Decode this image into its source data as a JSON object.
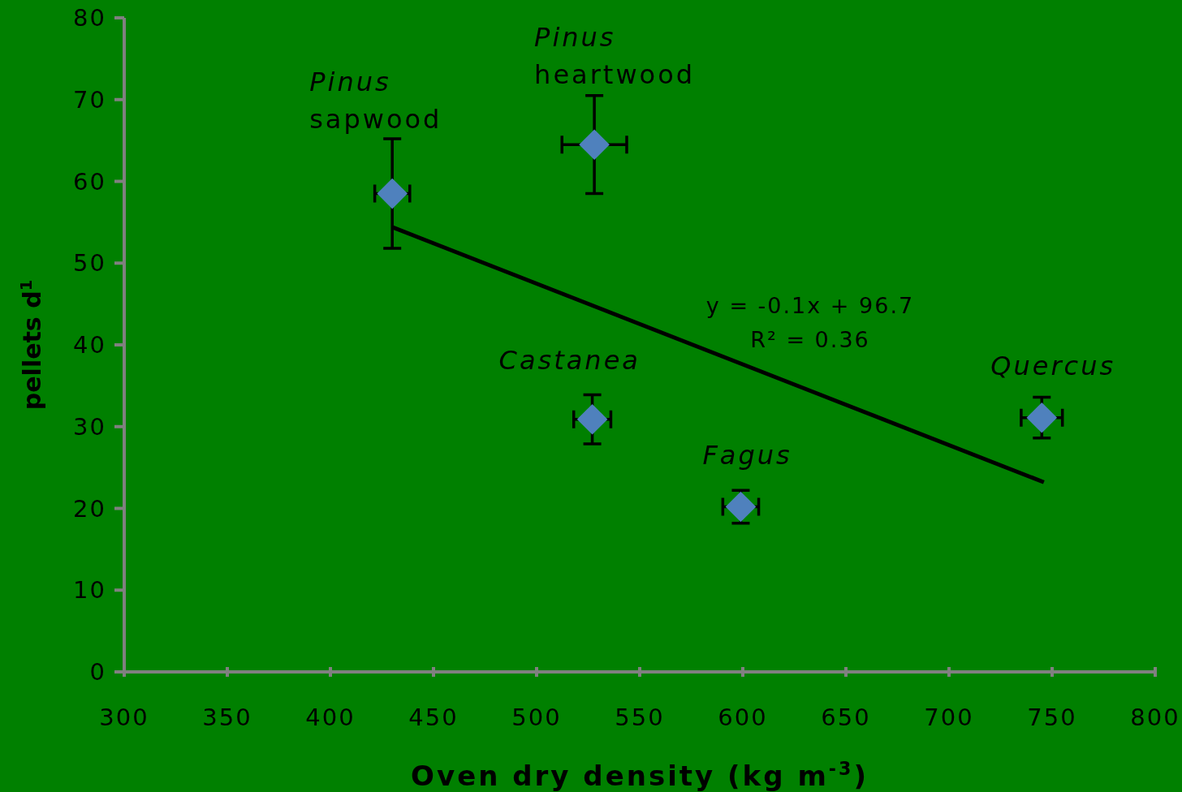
{
  "chart_data": {
    "type": "scatter",
    "xlabel": "Oven dry density (kg m$^{-3}$)",
    "ylabel": "pellets d$^{1}$",
    "xlim": [
      300,
      800
    ],
    "xticks": [
      300,
      350,
      400,
      450,
      500,
      550,
      600,
      650,
      700,
      750,
      800
    ],
    "ylim": [
      0,
      80
    ],
    "yticks": [
      0,
      10,
      20,
      30,
      40,
      50,
      60,
      70,
      80
    ],
    "series": [
      {
        "color": "#4f81bd",
        "marker": "diamond",
        "x": [
          430,
          528,
          527,
          599,
          745
        ],
        "values": [
          58.5,
          64.5,
          30.9,
          20.2,
          31.1
        ],
        "errors": [
          6.7,
          6,
          3,
          2,
          2.5
        ],
        "xerrors": [
          8.5,
          15.7,
          9,
          8.7,
          10
        ]
      },
      {
        "type": "line",
        "color": "#000000",
        "line_style": "solid",
        "x": [
          430,
          746
        ],
        "values": [
          54.4,
          23.2
        ]
      }
    ],
    "annotations": [
      "Pinus sapwood",
      "Pinus heartwood",
      "Castanea",
      "Fagus",
      "Quercus",
      "y = -0.1x + 96.7",
      "R² = 0.36"
    ]
  }
}
